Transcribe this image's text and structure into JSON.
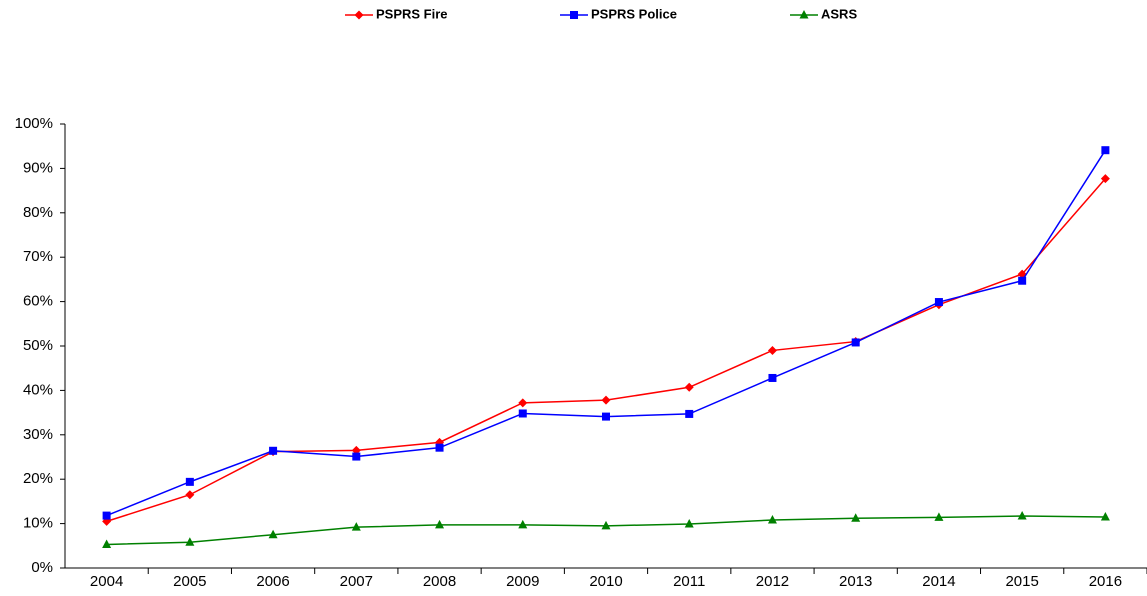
{
  "chart_data": {
    "type": "line",
    "categories": [
      "2004",
      "2005",
      "2006",
      "2007",
      "2008",
      "2009",
      "2010",
      "2011",
      "2012",
      "2013",
      "2014",
      "2015",
      "2016"
    ],
    "series": [
      {
        "name": "PSPRS Fire",
        "color": "#ff0000",
        "marker": "diamond",
        "values": [
          10.5,
          16.5,
          26.2,
          26.5,
          28.3,
          37.2,
          37.8,
          40.7,
          49,
          51,
          59.3,
          66.2,
          87.7
        ]
      },
      {
        "name": "PSPRS Police",
        "color": "#0000ff",
        "marker": "square",
        "values": [
          11.8,
          19.4,
          26.4,
          25.1,
          27.1,
          34.8,
          34.1,
          34.7,
          42.8,
          50.8,
          59.9,
          64.7,
          94.1
        ]
      },
      {
        "name": "ASRS",
        "color": "#008000",
        "marker": "triangle",
        "values": [
          5.3,
          5.8,
          7.5,
          9.2,
          9.7,
          9.7,
          9.5,
          9.9,
          10.8,
          11.2,
          11.4,
          11.7,
          11.5
        ]
      }
    ],
    "ylim": [
      0,
      100
    ],
    "yticks": [
      {
        "value": 0,
        "label": "0%"
      },
      {
        "value": 10,
        "label": "10%"
      },
      {
        "value": 20,
        "label": "20%"
      },
      {
        "value": 30,
        "label": "30%"
      },
      {
        "value": 40,
        "label": "40%"
      },
      {
        "value": 50,
        "label": "50%"
      },
      {
        "value": 60,
        "label": "60%"
      },
      {
        "value": 70,
        "label": "70%"
      },
      {
        "value": 80,
        "label": "80%"
      },
      {
        "value": 90,
        "label": "90%"
      },
      {
        "value": 100,
        "label": "100%"
      }
    ],
    "grid": false,
    "legend": "top"
  }
}
